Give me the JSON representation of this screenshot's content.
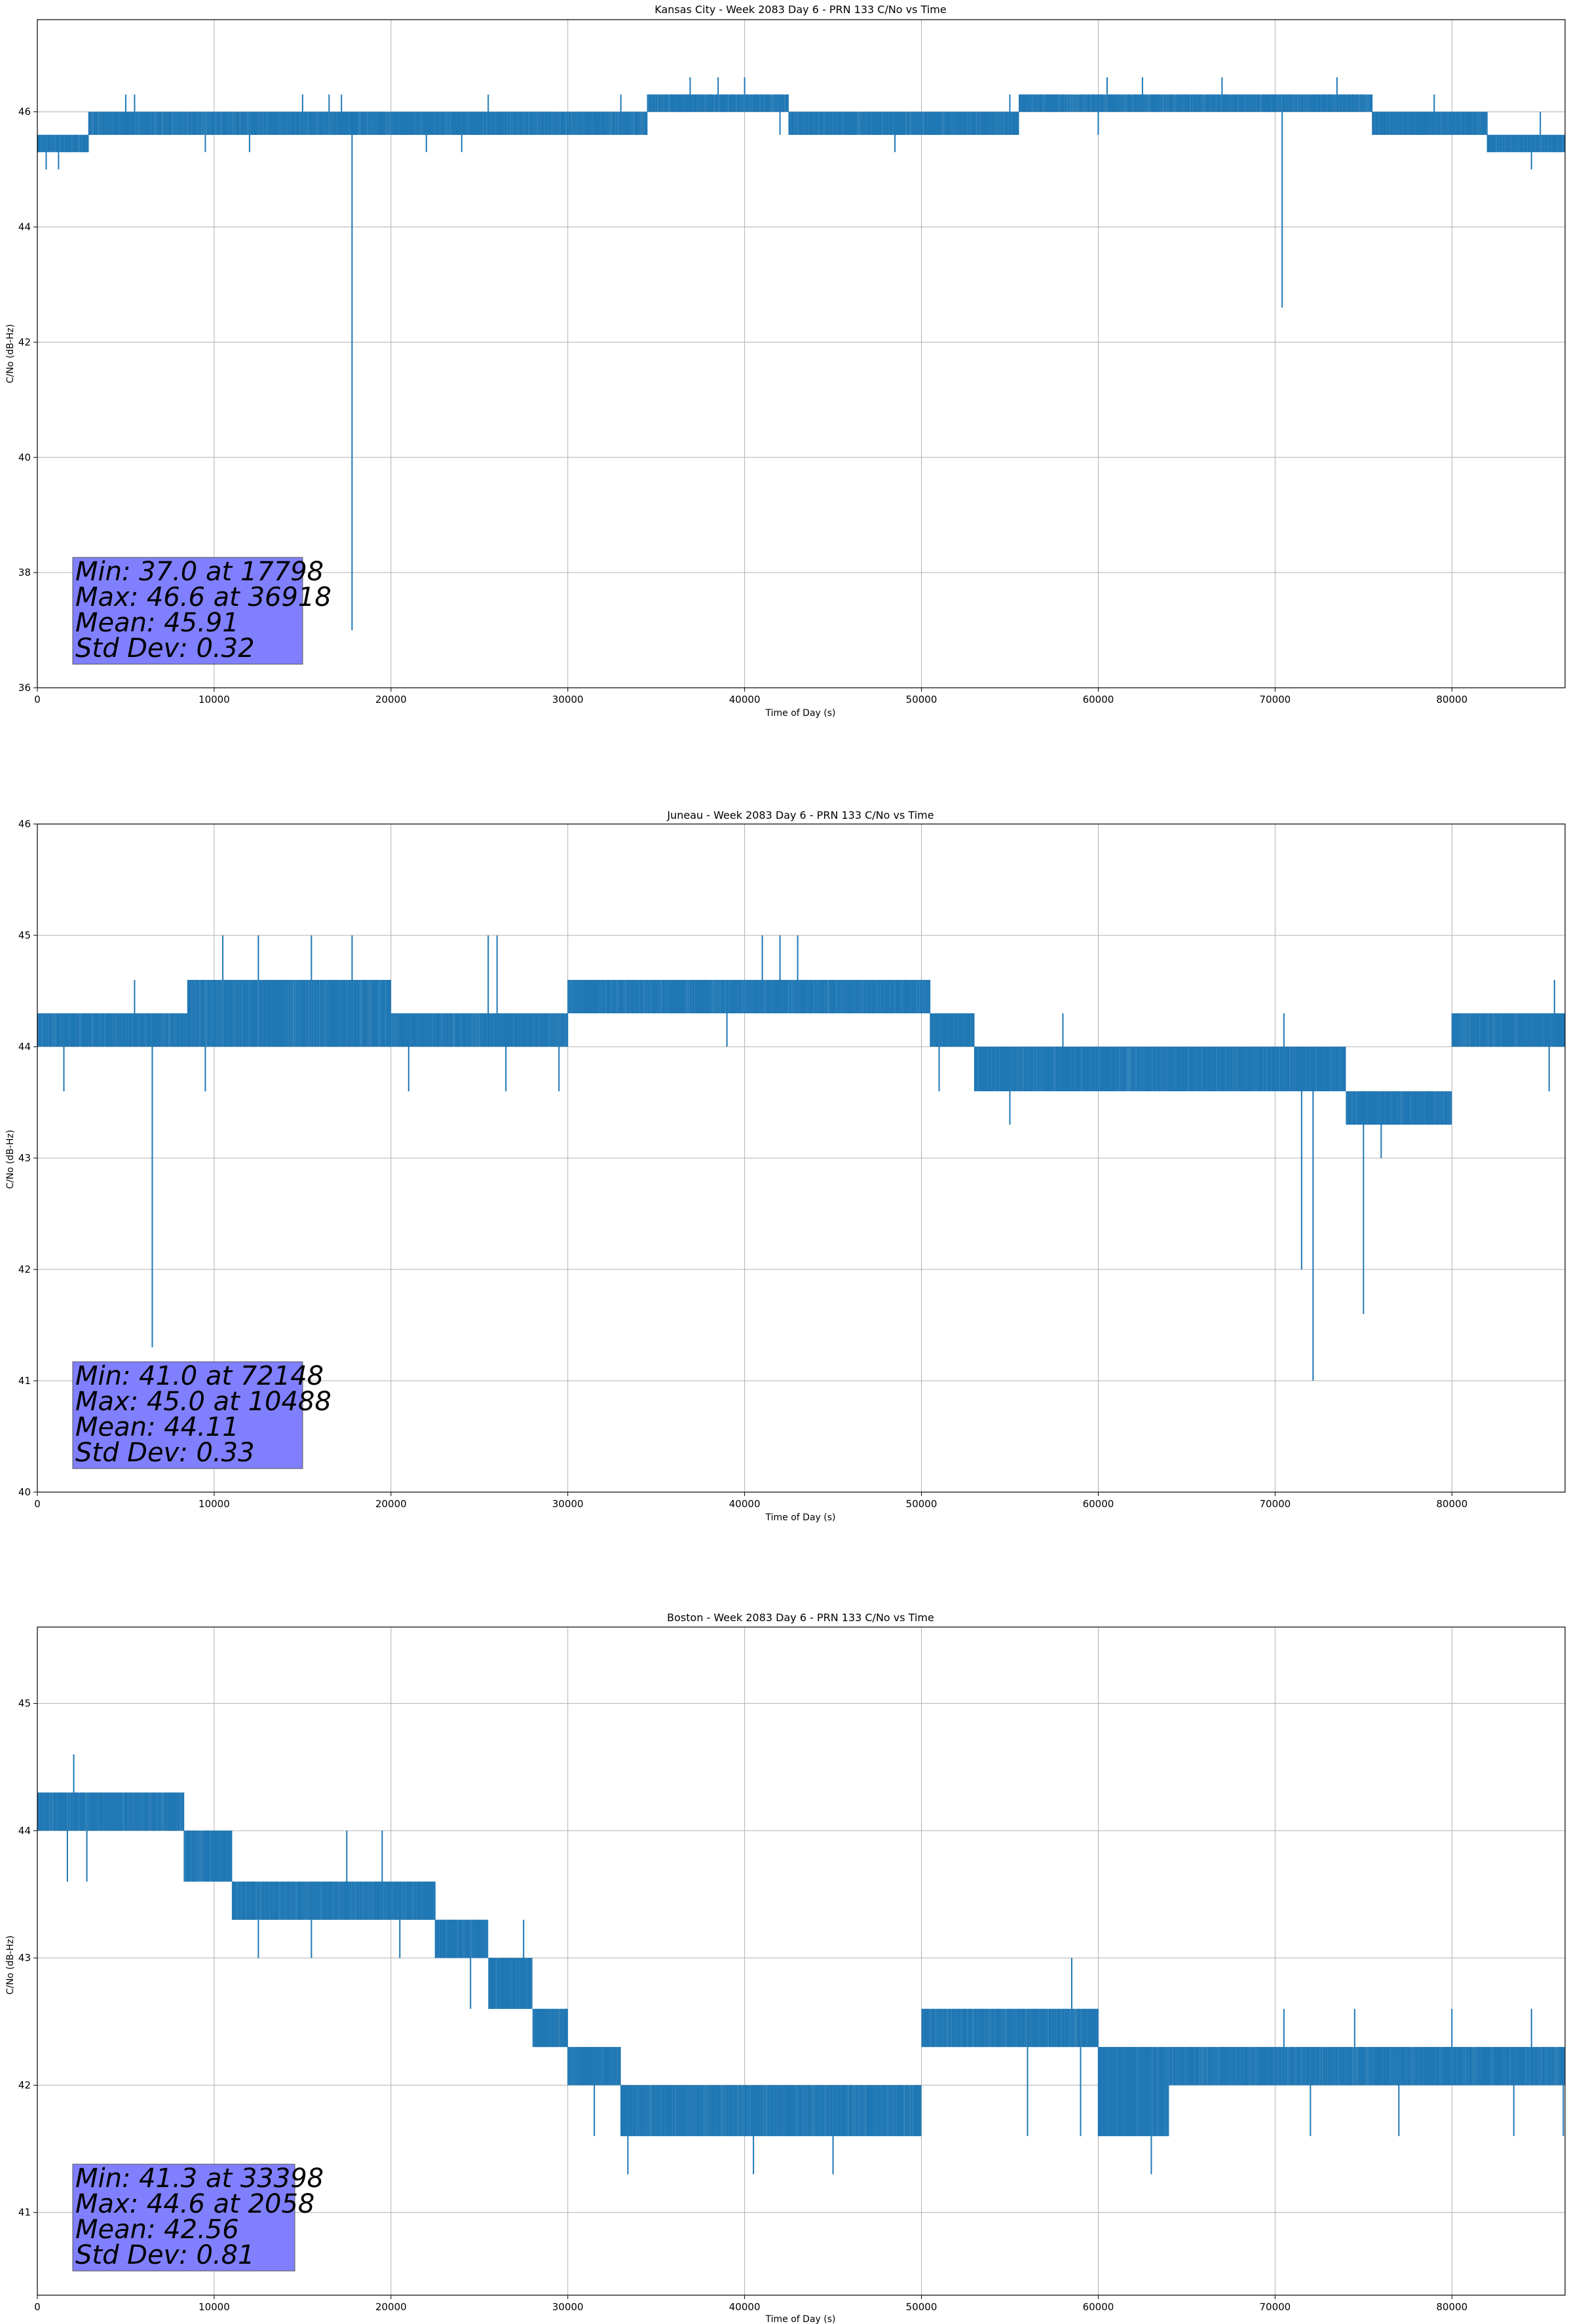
{
  "chart_data": [
    {
      "type": "line",
      "title": "Kansas City - Week 2083 Day 6 - PRN 133 C/No vs Time",
      "xlabel": "Time of Day (s)",
      "ylabel": "C/No (dB-Hz)",
      "xlim": [
        0,
        86400
      ],
      "ylim": [
        36,
        47.6
      ],
      "xticks": [
        0,
        10000,
        20000,
        30000,
        40000,
        50000,
        60000,
        70000,
        80000
      ],
      "yticks": [
        36,
        38,
        40,
        42,
        44,
        46
      ],
      "grid": true,
      "color": "#1f77b4",
      "stats_box": [
        "Min: 37.0 at 17798",
        "Max: 46.6 at 36918",
        "Mean: 45.91",
        "Std Dev: 0.32"
      ],
      "series": [
        {
          "segments": [
            {
              "x0": 0,
              "x1": 2900,
              "lo": 45.3,
              "hi": 45.6
            },
            {
              "x0": 2900,
              "x1": 17400,
              "lo": 45.6,
              "hi": 46.0
            },
            {
              "x0": 17400,
              "x1": 20000,
              "lo": 45.6,
              "hi": 46.0
            },
            {
              "x0": 20000,
              "x1": 30000,
              "lo": 45.6,
              "hi": 46.0
            },
            {
              "x0": 30000,
              "x1": 34500,
              "lo": 45.6,
              "hi": 46.0
            },
            {
              "x0": 34500,
              "x1": 42500,
              "lo": 46.0,
              "hi": 46.3
            },
            {
              "x0": 42500,
              "x1": 55500,
              "lo": 45.6,
              "hi": 46.0
            },
            {
              "x0": 55500,
              "x1": 75500,
              "lo": 46.0,
              "hi": 46.3
            },
            {
              "x0": 75500,
              "x1": 82000,
              "lo": 45.6,
              "hi": 46.0
            },
            {
              "x0": 82000,
              "x1": 86400,
              "lo": 45.3,
              "hi": 45.6
            }
          ],
          "spikes_up": [
            [
              5000,
              46.3
            ],
            [
              5500,
              46.3
            ],
            [
              11000,
              46.0
            ],
            [
              15000,
              46.3
            ],
            [
              16500,
              46.3
            ],
            [
              17200,
              46.3
            ],
            [
              25500,
              46.3
            ],
            [
              27000,
              46.0
            ],
            [
              33000,
              46.3
            ],
            [
              36918,
              46.6
            ],
            [
              38500,
              46.6
            ],
            [
              40000,
              46.6
            ],
            [
              55000,
              46.3
            ],
            [
              60500,
              46.6
            ],
            [
              62500,
              46.6
            ],
            [
              67000,
              46.6
            ],
            [
              73500,
              46.6
            ],
            [
              79000,
              46.3
            ],
            [
              85000,
              46.0
            ]
          ],
          "spikes_down": [
            [
              500,
              45.0
            ],
            [
              1200,
              45.0
            ],
            [
              9500,
              45.3
            ],
            [
              12000,
              45.3
            ],
            [
              17798,
              37.0
            ],
            [
              22000,
              45.3
            ],
            [
              24000,
              45.3
            ],
            [
              42000,
              45.6
            ],
            [
              48500,
              45.3
            ],
            [
              60000,
              45.6
            ],
            [
              70400,
              42.6
            ],
            [
              83000,
              45.3
            ],
            [
              84500,
              45.0
            ],
            [
              85200,
              45.3
            ]
          ]
        }
      ]
    },
    {
      "type": "line",
      "title": "Juneau - Week 2083 Day 6 - PRN 133 C/No vs Time",
      "xlabel": "Time of Day (s)",
      "ylabel": "C/No (dB-Hz)",
      "xlim": [
        0,
        86400
      ],
      "ylim": [
        40,
        46
      ],
      "xticks": [
        0,
        10000,
        20000,
        30000,
        40000,
        50000,
        60000,
        70000,
        80000
      ],
      "yticks": [
        40,
        41,
        42,
        43,
        44,
        45,
        46
      ],
      "grid": true,
      "color": "#1f77b4",
      "stats_box": [
        "Min: 41.0 at 72148",
        "Max: 45.0 at 10488",
        "Mean: 44.11",
        "Std Dev: 0.33"
      ],
      "series": [
        {
          "segments": [
            {
              "x0": 0,
              "x1": 8500,
              "lo": 44.0,
              "hi": 44.3
            },
            {
              "x0": 8500,
              "x1": 20000,
              "lo": 44.0,
              "hi": 44.6
            },
            {
              "x0": 20000,
              "x1": 30000,
              "lo": 44.0,
              "hi": 44.3
            },
            {
              "x0": 30000,
              "x1": 50500,
              "lo": 44.3,
              "hi": 44.6
            },
            {
              "x0": 50500,
              "x1": 53000,
              "lo": 44.0,
              "hi": 44.3
            },
            {
              "x0": 53000,
              "x1": 74000,
              "lo": 43.6,
              "hi": 44.0
            },
            {
              "x0": 74000,
              "x1": 80000,
              "lo": 43.3,
              "hi": 43.6
            },
            {
              "x0": 80000,
              "x1": 86400,
              "lo": 44.0,
              "hi": 44.3
            }
          ],
          "spikes_up": [
            [
              5500,
              44.6
            ],
            [
              10488,
              45.0
            ],
            [
              12500,
              45.0
            ],
            [
              15500,
              45.0
            ],
            [
              17800,
              45.0
            ],
            [
              25500,
              45.0
            ],
            [
              26000,
              45.0
            ],
            [
              41000,
              45.0
            ],
            [
              42000,
              45.0
            ],
            [
              43000,
              45.0
            ],
            [
              49000,
              44.6
            ],
            [
              58000,
              44.3
            ],
            [
              70500,
              44.3
            ],
            [
              85800,
              44.6
            ]
          ],
          "spikes_down": [
            [
              1500,
              43.6
            ],
            [
              6500,
              41.3
            ],
            [
              9500,
              43.6
            ],
            [
              21000,
              43.6
            ],
            [
              26500,
              43.6
            ],
            [
              29500,
              43.6
            ],
            [
              39000,
              44.0
            ],
            [
              51000,
              43.6
            ],
            [
              55000,
              43.3
            ],
            [
              62000,
              43.6
            ],
            [
              71500,
              42.0
            ],
            [
              72148,
              41.0
            ],
            [
              75000,
              41.6
            ],
            [
              76000,
              43.0
            ],
            [
              85500,
              43.6
            ]
          ]
        }
      ]
    },
    {
      "type": "line",
      "title": "Boston - Week 2083 Day 6 - PRN 133 C/No vs Time",
      "xlabel": "Time of Day (s)",
      "ylabel": "C/No (dB-Hz)",
      "xlim": [
        0,
        86400
      ],
      "ylim": [
        40.35,
        45.6
      ],
      "xticks": [
        0,
        10000,
        20000,
        30000,
        40000,
        50000,
        60000,
        70000,
        80000
      ],
      "yticks": [
        41,
        42,
        43,
        44,
        45
      ],
      "grid": true,
      "color": "#1f77b4",
      "stats_box": [
        "Min: 41.3 at 33398",
        "Max: 44.6 at 2058",
        "Mean: 42.56",
        "Std Dev: 0.81"
      ],
      "series": [
        {
          "segments": [
            {
              "x0": 0,
              "x1": 8300,
              "lo": 44.0,
              "hi": 44.3
            },
            {
              "x0": 8300,
              "x1": 11000,
              "lo": 43.6,
              "hi": 44.0
            },
            {
              "x0": 11000,
              "x1": 16000,
              "lo": 43.3,
              "hi": 43.6
            },
            {
              "x0": 16000,
              "x1": 22500,
              "lo": 43.3,
              "hi": 43.6
            },
            {
              "x0": 22500,
              "x1": 25500,
              "lo": 43.0,
              "hi": 43.3
            },
            {
              "x0": 25500,
              "x1": 28000,
              "lo": 42.6,
              "hi": 43.0
            },
            {
              "x0": 28000,
              "x1": 30000,
              "lo": 42.3,
              "hi": 42.6
            },
            {
              "x0": 30000,
              "x1": 33000,
              "lo": 42.0,
              "hi": 42.3
            },
            {
              "x0": 33000,
              "x1": 50000,
              "lo": 41.6,
              "hi": 42.0
            },
            {
              "x0": 50000,
              "x1": 60000,
              "lo": 42.3,
              "hi": 42.6
            },
            {
              "x0": 60000,
              "x1": 64000,
              "lo": 41.6,
              "hi": 42.3
            },
            {
              "x0": 64000,
              "x1": 86400,
              "lo": 42.0,
              "hi": 42.3
            }
          ],
          "spikes_up": [
            [
              2058,
              44.6
            ],
            [
              17500,
              44.0
            ],
            [
              19500,
              44.0
            ],
            [
              27500,
              43.3
            ],
            [
              42000,
              42.0
            ],
            [
              58500,
              43.0
            ],
            [
              70500,
              42.6
            ],
            [
              74500,
              42.6
            ],
            [
              80000,
              42.6
            ],
            [
              84500,
              42.6
            ]
          ],
          "spikes_down": [
            [
              1700,
              43.6
            ],
            [
              2800,
              43.6
            ],
            [
              12500,
              43.0
            ],
            [
              15500,
              43.0
            ],
            [
              20500,
              43.0
            ],
            [
              24500,
              42.6
            ],
            [
              28500,
              42.3
            ],
            [
              31500,
              41.6
            ],
            [
              33398,
              41.3
            ],
            [
              40500,
              41.3
            ],
            [
              45000,
              41.3
            ],
            [
              47000,
              41.6
            ],
            [
              56000,
              41.6
            ],
            [
              59000,
              41.6
            ],
            [
              63000,
              41.3
            ],
            [
              72000,
              41.6
            ],
            [
              77000,
              41.6
            ],
            [
              83500,
              41.6
            ],
            [
              86300,
              41.6
            ]
          ]
        }
      ]
    }
  ]
}
